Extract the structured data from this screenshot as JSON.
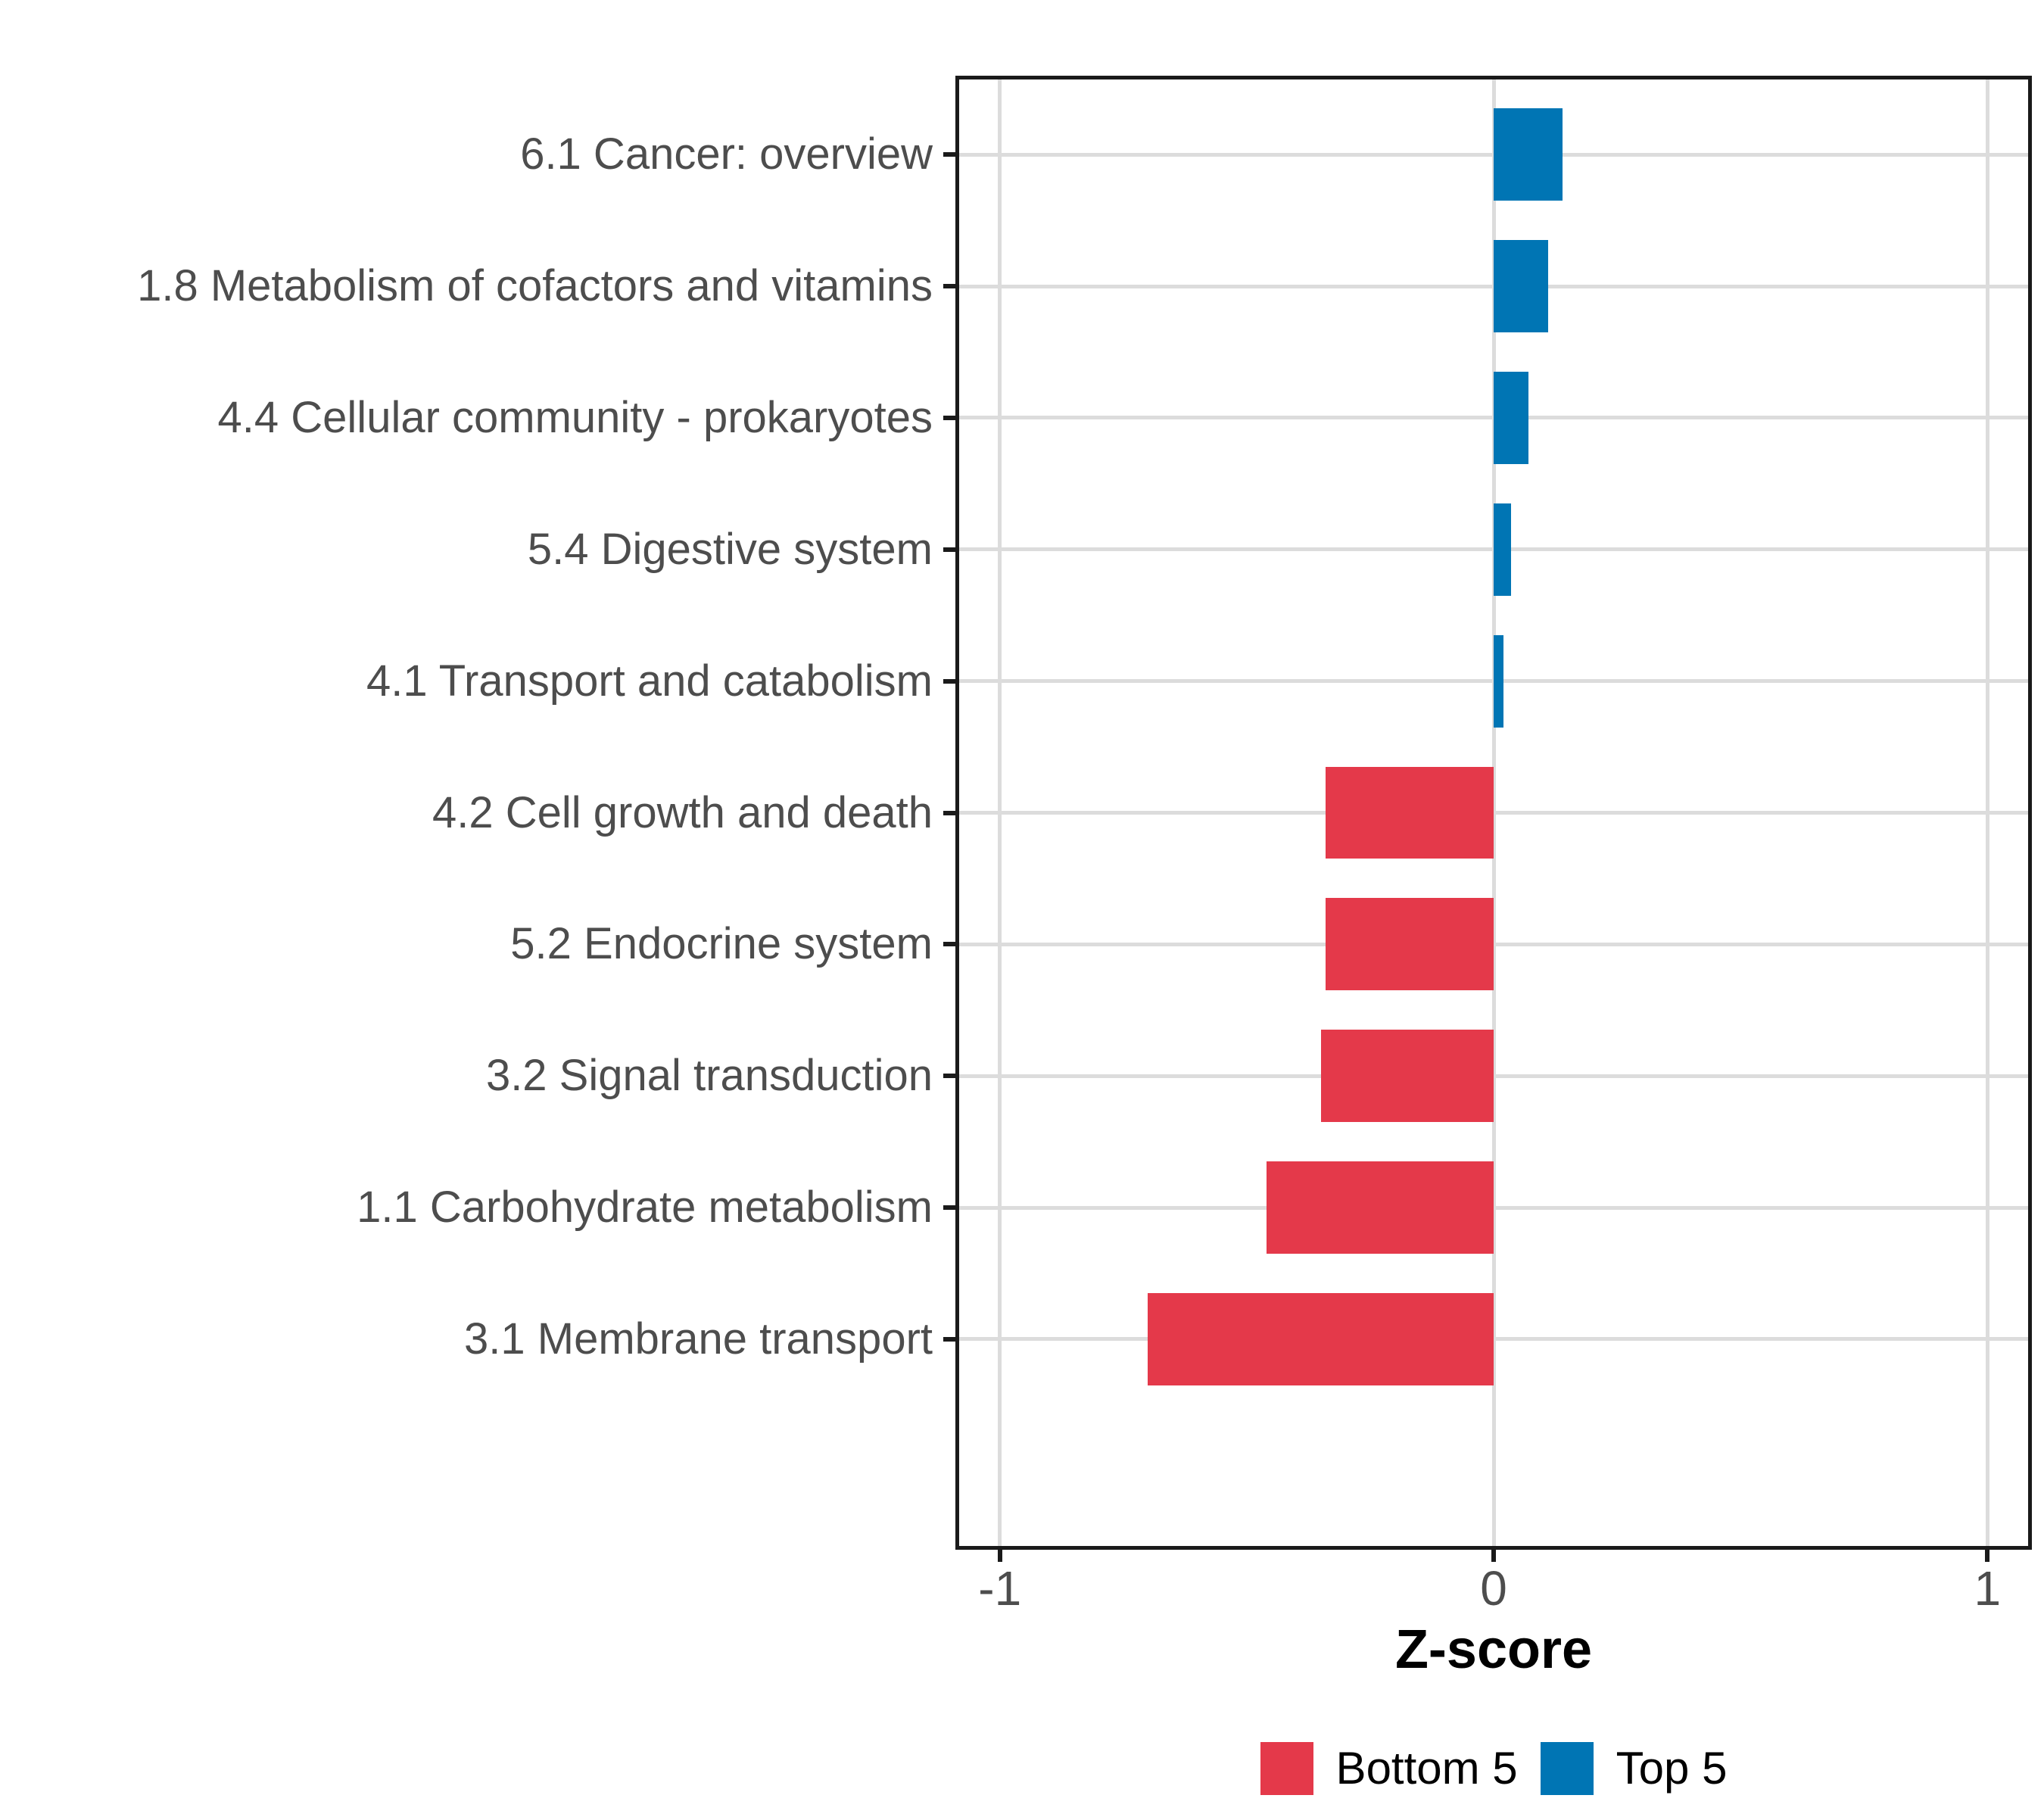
{
  "chart_data": {
    "type": "bar",
    "orientation": "horizontal",
    "title": "",
    "xlabel": "Z-score",
    "ylabel": "",
    "xlim": [
      -1.09,
      1.09
    ],
    "x_ticks": [
      -1,
      0,
      1
    ],
    "x_tick_labels": [
      "-1",
      "0",
      "1"
    ],
    "grid": "major",
    "legend_position": "bottom",
    "bar_width_fraction": 0.7,
    "categories": [
      "6.1 Cancer: overview",
      "1.8 Metabolism of cofactors and vitamins",
      "4.4 Cellular community - prokaryotes",
      "5.4 Digestive system",
      "4.1 Transport and catabolism",
      "4.2 Cell growth and death",
      "5.2 Endocrine system",
      "3.2 Signal transduction",
      "1.1 Carbohydrate metabolism",
      "3.1 Membrane transport"
    ],
    "values": [
      0.14,
      0.11,
      0.07,
      0.035,
      0.02,
      -0.34,
      -0.34,
      -0.35,
      -0.46,
      -0.7
    ],
    "groups": [
      "Top 5",
      "Top 5",
      "Top 5",
      "Top 5",
      "Top 5",
      "Bottom 5",
      "Bottom 5",
      "Bottom 5",
      "Bottom 5",
      "Bottom 5"
    ],
    "group_colors": {
      "Bottom 5": "#E4394A",
      "Top 5": "#0075B4"
    }
  },
  "legend": {
    "items": [
      {
        "label": "Bottom 5",
        "color": "#E4394A"
      },
      {
        "label": "Top 5",
        "color": "#0075B4"
      }
    ]
  },
  "style": {
    "background": "#FFFFFF",
    "axis_text_color": "#4D4D4D",
    "grid_color": "#DCDCDC",
    "border_color": "#1A1A1A",
    "title_color": "#000000"
  }
}
